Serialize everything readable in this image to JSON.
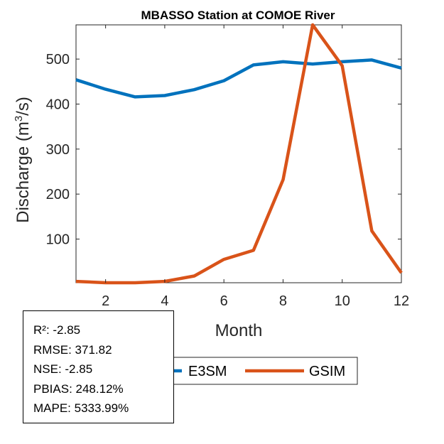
{
  "chart_data": {
    "type": "line",
    "title": "MBASSO  Station at  COMOE  River",
    "xlabel": "Month",
    "ylabel": "Discharge (m³/s)",
    "ylabel_parts": {
      "before": "Discharge (m",
      "sup": "3",
      "after": "/s)"
    },
    "x": [
      1,
      2,
      3,
      4,
      5,
      6,
      7,
      8,
      9,
      10,
      11,
      12
    ],
    "xlim": [
      1,
      12
    ],
    "ylim": [
      3,
      576
    ],
    "xticks": [
      2,
      4,
      6,
      8,
      10,
      12
    ],
    "yticks": [
      100,
      200,
      300,
      400,
      500
    ],
    "xtick_labels": [
      "2",
      "4",
      "6",
      "8",
      "10",
      "12"
    ],
    "ytick_labels": [
      "100",
      "200",
      "300",
      "400",
      "500"
    ],
    "grid": false,
    "legend_placement": "bottom-outside",
    "series": [
      {
        "name": "E3SM",
        "color": "#0072BD",
        "values": [
          454,
          433,
          416,
          419,
          432,
          452,
          487,
          494,
          489,
          494,
          498,
          480
        ]
      },
      {
        "name": "GSIM",
        "color": "#D95319",
        "values": [
          6,
          3,
          3,
          6,
          18,
          55,
          75,
          232,
          576,
          485,
          118,
          25
        ]
      }
    ]
  },
  "legend": {
    "items": [
      {
        "label": "E3SM",
        "color": "#0072BD"
      },
      {
        "label": "GSIM",
        "color": "#D95319"
      }
    ]
  },
  "stats": {
    "lines": [
      "R²: -2.85",
      "RMSE: 371.82",
      "NSE: -2.85",
      "PBIAS: 248.12%",
      "MAPE: 5333.99%"
    ]
  }
}
